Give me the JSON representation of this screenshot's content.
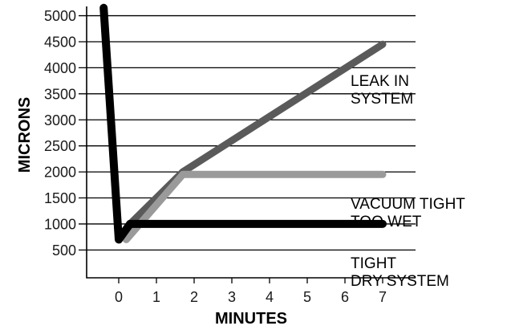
{
  "chart_data": {
    "type": "line",
    "title": "",
    "xlabel": "MINUTES",
    "ylabel": "MICRONS",
    "xlim": [
      -0.8,
      8
    ],
    "ylim": [
      0,
      5150
    ],
    "x_ticks": [
      0,
      1,
      2,
      3,
      4,
      5,
      6,
      7
    ],
    "y_ticks": [
      500,
      1000,
      1500,
      2000,
      2500,
      3000,
      3500,
      4000,
      4500,
      5000
    ],
    "grid": true,
    "legend": "none",
    "series": [
      {
        "key": "leak",
        "color": "#5a5a5a",
        "points": [
          [
            0.3,
            1000
          ],
          [
            1.7,
            2000
          ],
          [
            7,
            4450
          ]
        ]
      },
      {
        "key": "wet",
        "color": "#9a9a9a",
        "points": [
          [
            0.2,
            700
          ],
          [
            1.7,
            1950
          ],
          [
            7,
            1950
          ]
        ]
      },
      {
        "key": "dry",
        "color": "#000000",
        "points": [
          [
            -0.4,
            5150
          ],
          [
            0,
            700
          ],
          [
            0.3,
            1000
          ],
          [
            7,
            1000
          ]
        ]
      }
    ],
    "annotations": [
      {
        "key": "leak",
        "lines": [
          "LEAK IN",
          "SYSTEM"
        ],
        "x": 6.15,
        "y": 3650
      },
      {
        "key": "wet",
        "lines": [
          "VACUUM TIGHT",
          "TOO WET"
        ],
        "x": 6.15,
        "y": 1290
      },
      {
        "key": "dry",
        "lines": [
          "TIGHT",
          "DRY SYSTEM"
        ],
        "x": 6.15,
        "y": 150
      }
    ]
  }
}
